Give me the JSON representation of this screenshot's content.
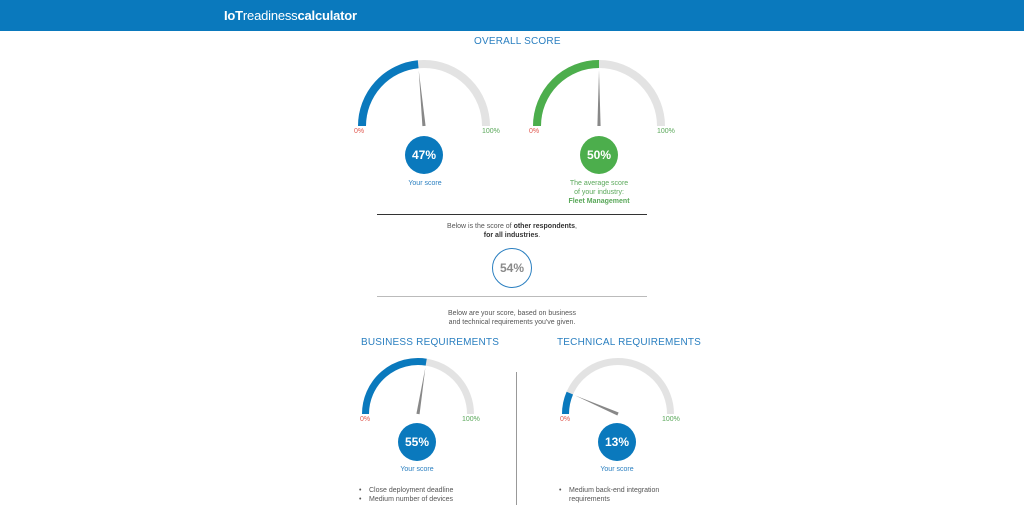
{
  "header": {
    "brand_part1": "IoT",
    "brand_part2": "readiness",
    "brand_part3": "calculator"
  },
  "overall": {
    "title": "OVERALL SCORE",
    "min_label": "0%",
    "max_label": "100%",
    "your_score": {
      "value": 47,
      "label": "47%",
      "caption": "Your score",
      "color": "#0a79bd"
    },
    "industry_average": {
      "value": 50,
      "label": "50%",
      "caption_line1": "The average score",
      "caption_line2": "of your industry:",
      "industry": "Fleet Management",
      "color": "#4cae4c"
    }
  },
  "respondents": {
    "text_prefix": "Below is the score of ",
    "text_bold": "other respondents",
    "text_suffix": ",",
    "text_line2": "for all industries",
    "text_line2_suffix": ".",
    "value": 54,
    "label": "54%"
  },
  "breakdown_note": {
    "line1": "Below are your score, based on business",
    "line2": "and technical requirements you've given."
  },
  "business": {
    "title": "BUSINESS REQUIREMENTS",
    "min_label": "0%",
    "max_label": "100%",
    "value": 55,
    "label": "55%",
    "caption": "Your score",
    "items": [
      "Close deployment deadline",
      "Medium number of devices"
    ]
  },
  "technical": {
    "title": "TECHNICAL REQUIREMENTS",
    "min_label": "0%",
    "max_label": "100%",
    "value": 13,
    "label": "13%",
    "caption": "Your score",
    "items_line1": "Medium back-end integration",
    "items_line2": "requirements"
  },
  "colors": {
    "brand_blue": "#0a79bd",
    "industry_green": "#4cae4c",
    "track_gray": "#e3e3e3",
    "needle_gray": "#888888"
  }
}
